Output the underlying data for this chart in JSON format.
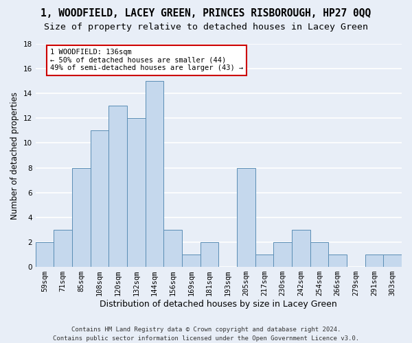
{
  "title": "1, WOODFIELD, LACEY GREEN, PRINCES RISBOROUGH, HP27 0QQ",
  "subtitle": "Size of property relative to detached houses in Lacey Green",
  "xlabel": "Distribution of detached houses by size in Lacey Green",
  "ylabel": "Number of detached properties",
  "categories": [
    "59sqm",
    "71sqm",
    "85sqm",
    "108sqm",
    "120sqm",
    "132sqm",
    "144sqm",
    "156sqm",
    "169sqm",
    "181sqm",
    "193sqm",
    "205sqm",
    "217sqm",
    "230sqm",
    "242sqm",
    "254sqm",
    "266sqm",
    "279sqm",
    "291sqm",
    "303sqm"
  ],
  "values": [
    2,
    3,
    8,
    11,
    13,
    12,
    15,
    3,
    1,
    2,
    0,
    8,
    1,
    2,
    3,
    2,
    1,
    0,
    1,
    1
  ],
  "bar_color": "#c5d8ed",
  "bar_edge_color": "#5a8db5",
  "highlight_bar_index": 6,
  "annotation_text": "1 WOODFIELD: 136sqm\n← 50% of detached houses are smaller (44)\n49% of semi-detached houses are larger (43) →",
  "annotation_box_color": "#ffffff",
  "annotation_box_edge_color": "#cc0000",
  "ylim": [
    0,
    18
  ],
  "yticks": [
    0,
    2,
    4,
    6,
    8,
    10,
    12,
    14,
    16,
    18
  ],
  "bg_color": "#e8eef7",
  "grid_color": "#ffffff",
  "footer": "Contains HM Land Registry data © Crown copyright and database right 2024.\nContains public sector information licensed under the Open Government Licence v3.0.",
  "title_fontsize": 10.5,
  "subtitle_fontsize": 9.5,
  "xlabel_fontsize": 9,
  "ylabel_fontsize": 8.5,
  "tick_fontsize": 7.5,
  "annotation_fontsize": 7.5,
  "footer_fontsize": 6.5
}
